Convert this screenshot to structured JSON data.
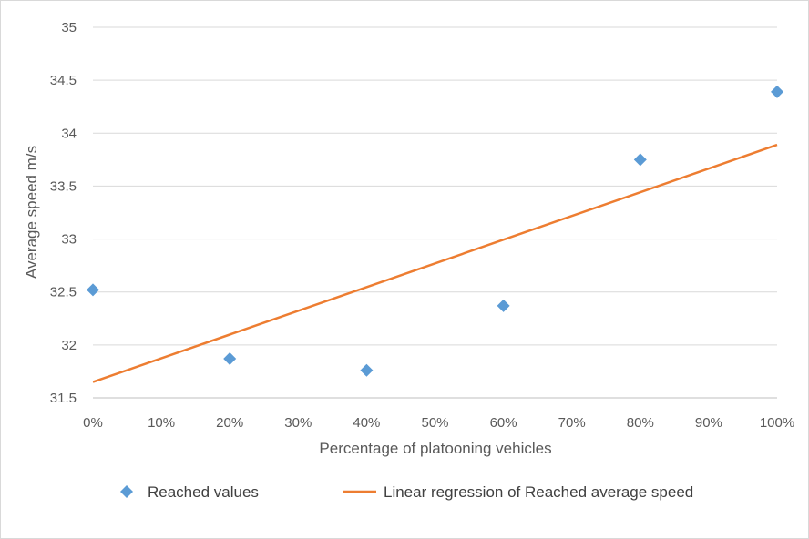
{
  "chart_data": {
    "type": "scatter",
    "title": "",
    "xlabel": "Percentage of platooning vehicles",
    "ylabel": "Average speed m/s",
    "xlim": [
      0,
      100
    ],
    "ylim": [
      31.5,
      35
    ],
    "x_ticks": [
      0,
      10,
      20,
      30,
      40,
      50,
      60,
      70,
      80,
      90,
      100
    ],
    "x_tick_labels": [
      "0%",
      "10%",
      "20%",
      "30%",
      "40%",
      "50%",
      "60%",
      "70%",
      "80%",
      "90%",
      "100%"
    ],
    "y_ticks": [
      31.5,
      32,
      32.5,
      33,
      33.5,
      34,
      34.5,
      35
    ],
    "y_tick_labels": [
      "31.5",
      "32",
      "32.5",
      "33",
      "33.5",
      "34",
      "34.5",
      "35"
    ],
    "grid": true,
    "legend_position": "bottom",
    "series": [
      {
        "name": "Reached values",
        "kind": "scatter",
        "marker": "diamond",
        "color": "#5B9BD5",
        "x": [
          0,
          20,
          40,
          60,
          80,
          100
        ],
        "y": [
          32.52,
          31.87,
          31.76,
          32.37,
          33.75,
          34.39
        ]
      },
      {
        "name": "Linear regression of Reached average speed",
        "kind": "line",
        "color": "#ED7D31",
        "x": [
          0,
          100
        ],
        "y": [
          31.65,
          33.89
        ]
      }
    ]
  }
}
